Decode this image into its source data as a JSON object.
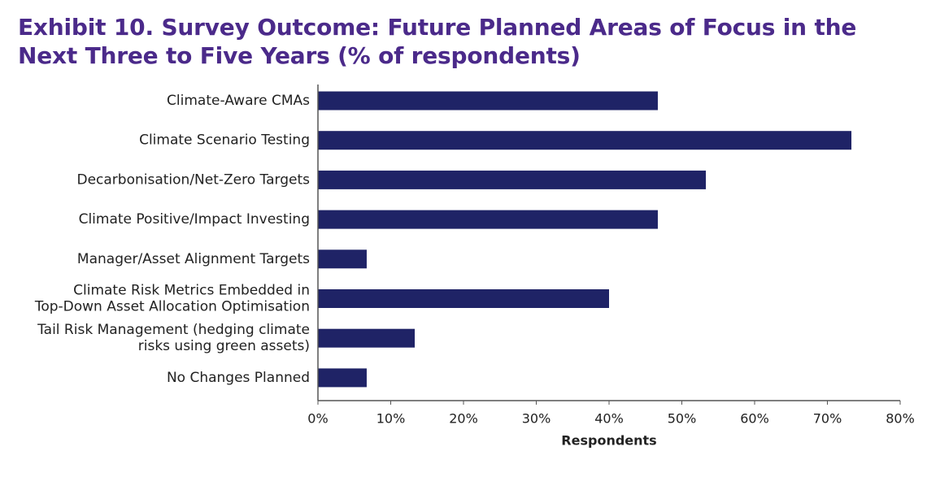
{
  "colors": {
    "title": "#4b2a8a",
    "bar": "#1f2366",
    "axis": "#555555",
    "text": "#222222"
  },
  "chart_data": {
    "type": "bar",
    "orientation": "horizontal",
    "title": "Exhibit 10. Survey Outcome: Future Planned Areas of Focus in the Next Three to Five Years (% of respondents)",
    "xlabel": "Respondents",
    "ylabel": "",
    "categories": [
      [
        "Climate-Aware CMAs"
      ],
      [
        "Climate Scenario Testing"
      ],
      [
        "Decarbonisation/Net-Zero Targets"
      ],
      [
        "Climate Positive/Impact Investing"
      ],
      [
        "Manager/Asset Alignment Targets"
      ],
      [
        "Climate Risk Metrics Embedded in",
        "Top-Down Asset Allocation Optimisation"
      ],
      [
        "Tail Risk Management (hedging climate",
        "risks using green assets)"
      ],
      [
        "No Changes Planned"
      ]
    ],
    "values": [
      46.7,
      73.3,
      53.3,
      46.7,
      6.7,
      40.0,
      13.3,
      6.7
    ],
    "xlim": [
      0,
      80
    ],
    "ticks": [
      0,
      10,
      20,
      30,
      40,
      50,
      60,
      70,
      80
    ],
    "tick_labels": [
      "0%",
      "10%",
      "20%",
      "30%",
      "40%",
      "50%",
      "60%",
      "70%",
      "80%"
    ],
    "grid": false,
    "legend": "none"
  }
}
